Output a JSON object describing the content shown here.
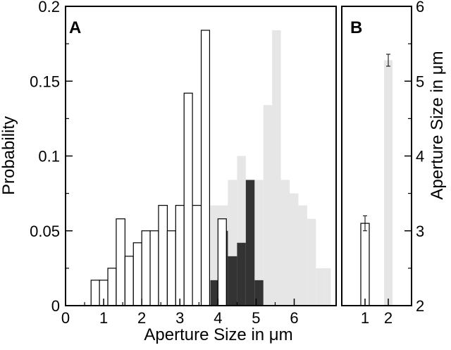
{
  "chart_data": [
    {
      "panel": "A",
      "type": "bar",
      "xlabel": "Aperture Size in μm",
      "ylabel": "Probability",
      "xlim": [
        0,
        7.1
      ],
      "ylim": [
        0,
        0.2
      ],
      "xticks": [
        "0",
        "1",
        "2",
        "3",
        "4",
        "5",
        "6"
      ],
      "yticks": [
        "0",
        "0.05",
        "0.1",
        "0.15",
        "0.2"
      ],
      "series": [
        {
          "style": "open-outline",
          "color": "#000000",
          "bins": [
            {
              "x0": 0.67,
              "x1": 0.89,
              "y": 0.017
            },
            {
              "x0": 0.89,
              "x1": 1.11,
              "y": 0.017
            },
            {
              "x0": 1.11,
              "x1": 1.33,
              "y": 0.025
            },
            {
              "x0": 1.33,
              "x1": 1.56,
              "y": 0.058
            },
            {
              "x0": 1.56,
              "x1": 1.78,
              "y": 0.033
            },
            {
              "x0": 1.78,
              "x1": 2.0,
              "y": 0.042
            },
            {
              "x0": 2.0,
              "x1": 2.22,
              "y": 0.05
            },
            {
              "x0": 2.22,
              "x1": 2.44,
              "y": 0.05
            },
            {
              "x0": 2.44,
              "x1": 2.67,
              "y": 0.067
            },
            {
              "x0": 2.67,
              "x1": 2.89,
              "y": 0.05
            },
            {
              "x0": 2.89,
              "x1": 3.11,
              "y": 0.067
            },
            {
              "x0": 3.11,
              "x1": 3.33,
              "y": 0.142
            },
            {
              "x0": 3.33,
              "x1": 3.56,
              "y": 0.067
            },
            {
              "x0": 3.56,
              "x1": 3.78,
              "y": 0.184
            },
            {
              "x0": 4.0,
              "x1": 4.22,
              "y": 0.058
            }
          ]
        },
        {
          "style": "light-gray-filled",
          "color": "#e6e6e6",
          "bins": [
            {
              "x0": 3.8,
              "x1": 4.03,
              "y": 0.067
            },
            {
              "x0": 4.03,
              "x1": 4.26,
              "y": 0.067
            },
            {
              "x0": 4.26,
              "x1": 4.5,
              "y": 0.084
            },
            {
              "x0": 4.5,
              "x1": 4.73,
              "y": 0.1
            },
            {
              "x0": 4.73,
              "x1": 4.96,
              "y": 0.084
            },
            {
              "x0": 4.96,
              "x1": 5.19,
              "y": 0.084
            },
            {
              "x0": 5.19,
              "x1": 5.42,
              "y": 0.134
            },
            {
              "x0": 5.42,
              "x1": 5.65,
              "y": 0.184
            },
            {
              "x0": 5.65,
              "x1": 5.88,
              "y": 0.084
            },
            {
              "x0": 5.88,
              "x1": 6.11,
              "y": 0.075
            },
            {
              "x0": 6.11,
              "x1": 6.34,
              "y": 0.067
            },
            {
              "x0": 6.34,
              "x1": 6.57,
              "y": 0.058
            },
            {
              "x0": 6.57,
              "x1": 6.8,
              "y": 0.025
            },
            {
              "x0": 6.8,
              "x1": 6.96,
              "y": 0.025
            }
          ]
        },
        {
          "style": "dark-filled",
          "color": "#333333",
          "bins": [
            {
              "x0": 3.8,
              "x1": 4.03,
              "y": 0.017
            },
            {
              "x0": 4.03,
              "x1": 4.26,
              "y": 0.05
            },
            {
              "x0": 4.26,
              "x1": 4.5,
              "y": 0.033
            },
            {
              "x0": 4.5,
              "x1": 4.73,
              "y": 0.042
            },
            {
              "x0": 4.73,
              "x1": 4.96,
              "y": 0.084
            },
            {
              "x0": 4.96,
              "x1": 5.19,
              "y": 0.017
            }
          ]
        }
      ]
    },
    {
      "panel": "B",
      "type": "bar",
      "ylabel": "Aperture Size in μm",
      "ylim": [
        2,
        6
      ],
      "xlim": [
        0,
        3
      ],
      "xticks": [
        "1",
        "2"
      ],
      "yticks": [
        "2",
        "3",
        "4",
        "5",
        "6"
      ],
      "bars": [
        {
          "x": 1,
          "value": 3.1,
          "error": 0.1,
          "style": "open-outline",
          "color": "#000000"
        },
        {
          "x": 2,
          "value": 5.28,
          "error": 0.08,
          "style": "light-gray-filled",
          "color": "#e6e6e6"
        }
      ]
    }
  ]
}
